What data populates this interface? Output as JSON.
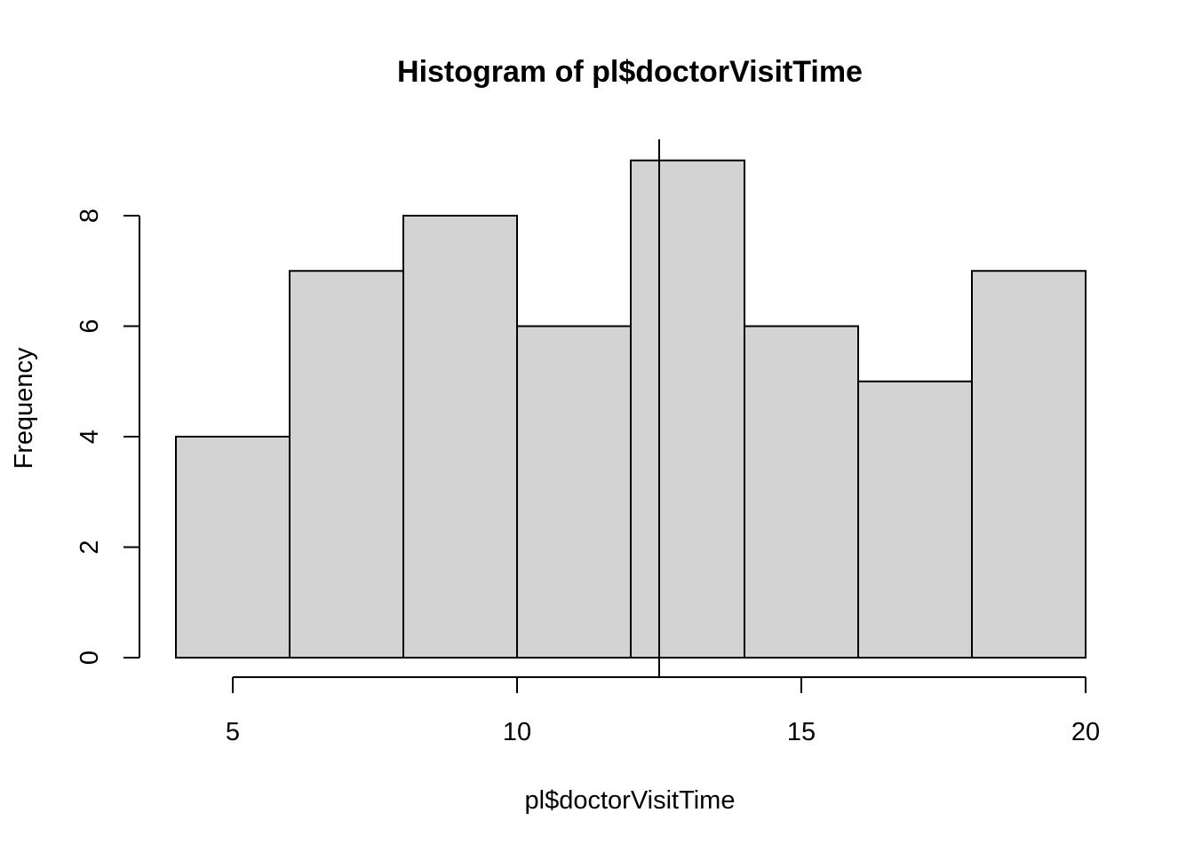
{
  "chart_data": {
    "type": "bar",
    "title": "Histogram of pl$doctorVisitTime",
    "xlabel": "pl$doctorVisitTime",
    "ylabel": "Frequency",
    "bins": [
      {
        "from": 4,
        "to": 6,
        "count": 4
      },
      {
        "from": 6,
        "to": 8,
        "count": 7
      },
      {
        "from": 8,
        "to": 10,
        "count": 8
      },
      {
        "from": 10,
        "to": 12,
        "count": 6
      },
      {
        "from": 12,
        "to": 14,
        "count": 9
      },
      {
        "from": 14,
        "to": 16,
        "count": 6
      },
      {
        "from": 16,
        "to": 18,
        "count": 5
      },
      {
        "from": 18,
        "to": 20,
        "count": 7
      }
    ],
    "x_ticks": [
      5,
      10,
      15,
      20
    ],
    "y_ticks": [
      0,
      2,
      4,
      6,
      8
    ],
    "xlim": [
      4,
      20
    ],
    "ylim": [
      0,
      9
    ],
    "reference_line_x": 12.5,
    "bar_fill": "#d3d3d3",
    "grid": false
  }
}
